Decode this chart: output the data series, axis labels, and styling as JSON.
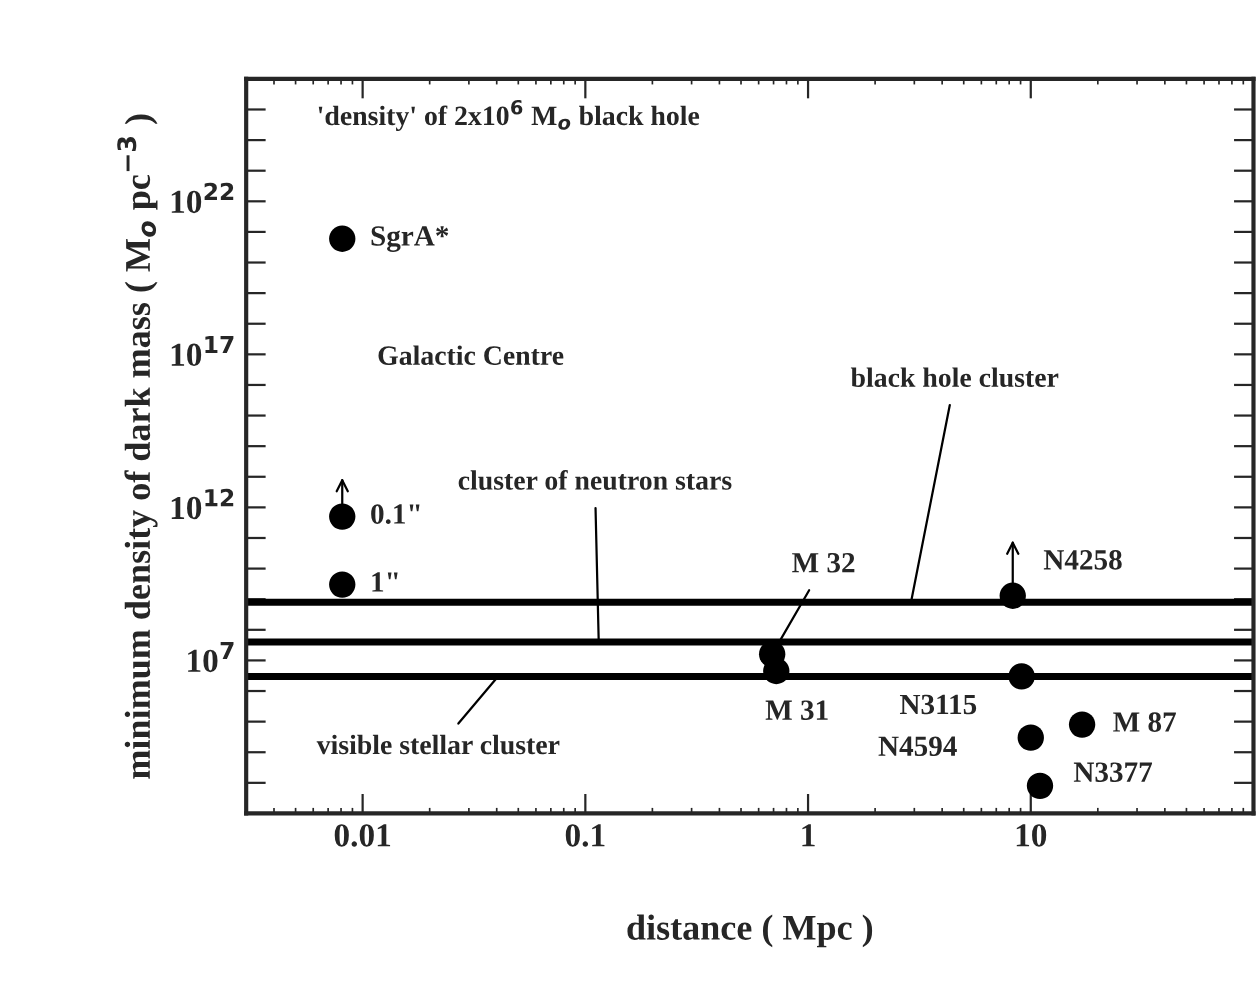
{
  "chart_data": {
    "type": "scatter",
    "xlabel": "distance ( Mpc )",
    "ylabel": "minimum density of dark mass ( M$_{o}$ pc$^{−3}$ )",
    "log": "xy",
    "xlim": [
      0.003,
      100
    ],
    "xticks": [
      0.01,
      0.1,
      1,
      10
    ],
    "ylim": [
      100.0,
      1e+26
    ],
    "yticks": [
      {
        "value": 1000.0,
        "label": null
      },
      {
        "value": 10000.0,
        "label": null
      },
      {
        "value": 100000.0,
        "label": null
      },
      {
        "value": 1000000.0,
        "label": null
      },
      {
        "value": 10000000.0,
        "label": "10$^{7}$"
      },
      {
        "value": 100000000.0,
        "label": null
      },
      {
        "value": 1000000000.0,
        "label": null
      },
      {
        "value": 10000000000.0,
        "label": null
      },
      {
        "value": 100000000000.0,
        "label": null
      },
      {
        "value": 1000000000000.0,
        "label": "10$^{12}$"
      },
      {
        "value": 10000000000000.0,
        "label": null
      },
      {
        "value": 100000000000000.0,
        "label": null
      },
      {
        "value": 1000000000000000.0,
        "label": null
      },
      {
        "value": 1e+16,
        "label": null
      },
      {
        "value": 1e+17,
        "label": "10$^{17}$"
      },
      {
        "value": 1e+18,
        "label": null
      },
      {
        "value": 1e+19,
        "label": null
      },
      {
        "value": 1e+20,
        "label": null
      },
      {
        "value": 1e+21,
        "label": null
      },
      {
        "value": 1e+22,
        "label": "10$^{22}$"
      },
      {
        "value": 1e+23,
        "label": null
      },
      {
        "value": 1e+24,
        "label": null
      },
      {
        "value": 1e+25,
        "label": null
      }
    ],
    "grid": false,
    "marker": "circle",
    "series": [
      {
        "color": "#000000",
        "x": [
          0.0081,
          0.0081,
          0.0081,
          0.69,
          0.72,
          8.3,
          9.1,
          10,
          17,
          11
        ],
        "values": [
          6e+20,
          500000000000.0,
          3000000000.0,
          16000000.0,
          4500000.0,
          1300000000.0,
          3000000.0,
          30000.0,
          80000.0,
          800.0
        ]
      }
    ],
    "ref_lines": [
      {
        "axis": "y",
        "value": 800000000.0,
        "label": "black hole cluster",
        "color": "#000000"
      },
      {
        "axis": "y",
        "value": 40000000.0,
        "label": "cluster of neutron stars",
        "color": "#000000"
      },
      {
        "axis": "y",
        "value": 3000000.0,
        "label": "visible stellar cluster",
        "color": "#000000"
      }
    ],
    "annotations": [
      "'density' of 2x10$^{6}$ M$_{o}$ black hole",
      "Galactic Centre",
      {
        "text": "SgrA*",
        "x": 0.0081,
        "y": 6e+20
      },
      {
        "text": "0.1\"",
        "x": 0.0081,
        "y": 500000000000.0
      },
      {
        "text": "1\"",
        "x": 0.0081,
        "y": 3000000000.0
      },
      {
        "text": "M 32",
        "x": 0.69,
        "y": 16000000.0
      },
      {
        "text": "M 31",
        "x": 0.72,
        "y": 4500000.0
      },
      {
        "text": "N4258",
        "x": 8.3,
        "y": 1300000000.0
      },
      {
        "text": "N3115",
        "x": 9.1,
        "y": 3000000.0
      },
      {
        "text": "N4594",
        "x": 10,
        "y": 30000.0
      },
      {
        "text": "M 87",
        "x": 17,
        "y": 80000.0
      },
      {
        "text": "N3377",
        "x": 11,
        "y": 800.0
      }
    ]
  }
}
